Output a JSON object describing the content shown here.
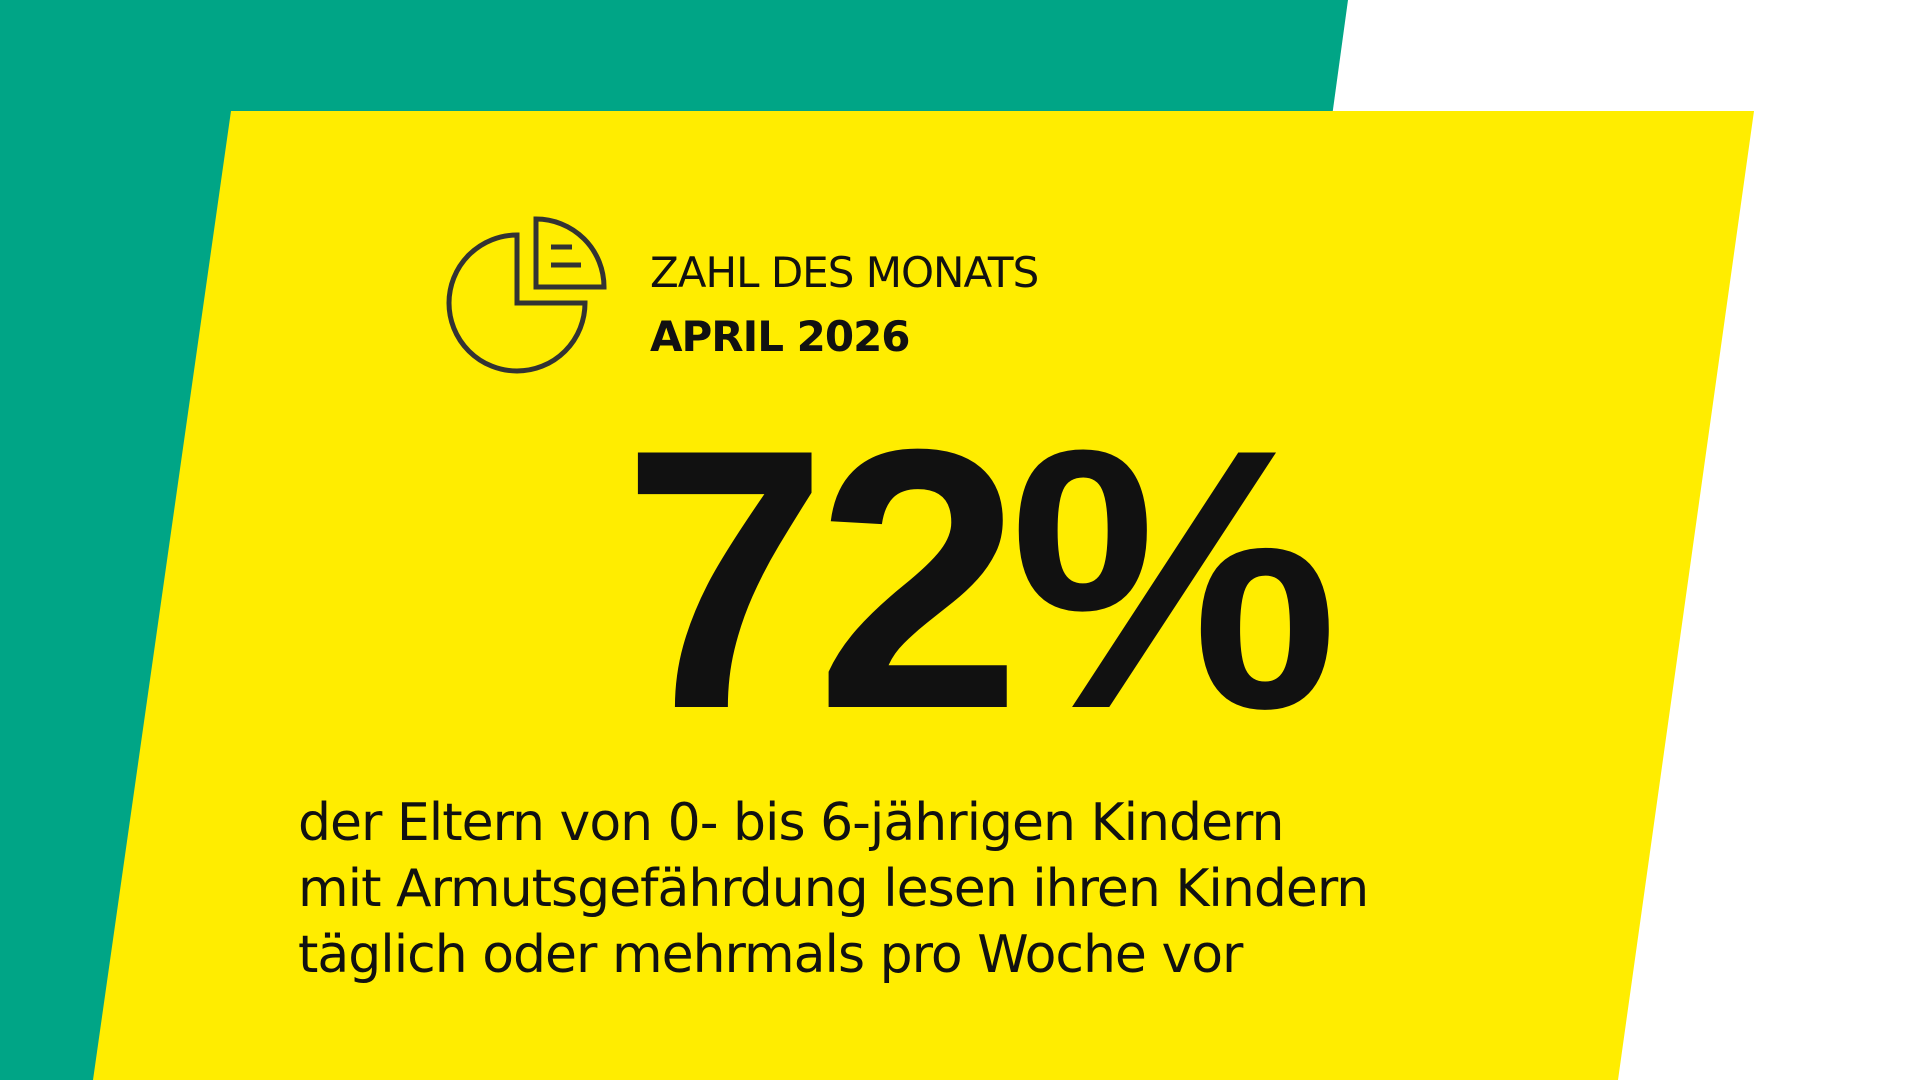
{
  "header": {
    "label": "ZAHL DES MONATS",
    "date": "APRIL 2026"
  },
  "statistic": "72%",
  "description": [
    "der Eltern von 0- bis 6-jährigen Kindern",
    "mit Armutsgefährdung lesen ihren Kindern",
    "täglich oder mehrmals pro Woche vor"
  ]
}
